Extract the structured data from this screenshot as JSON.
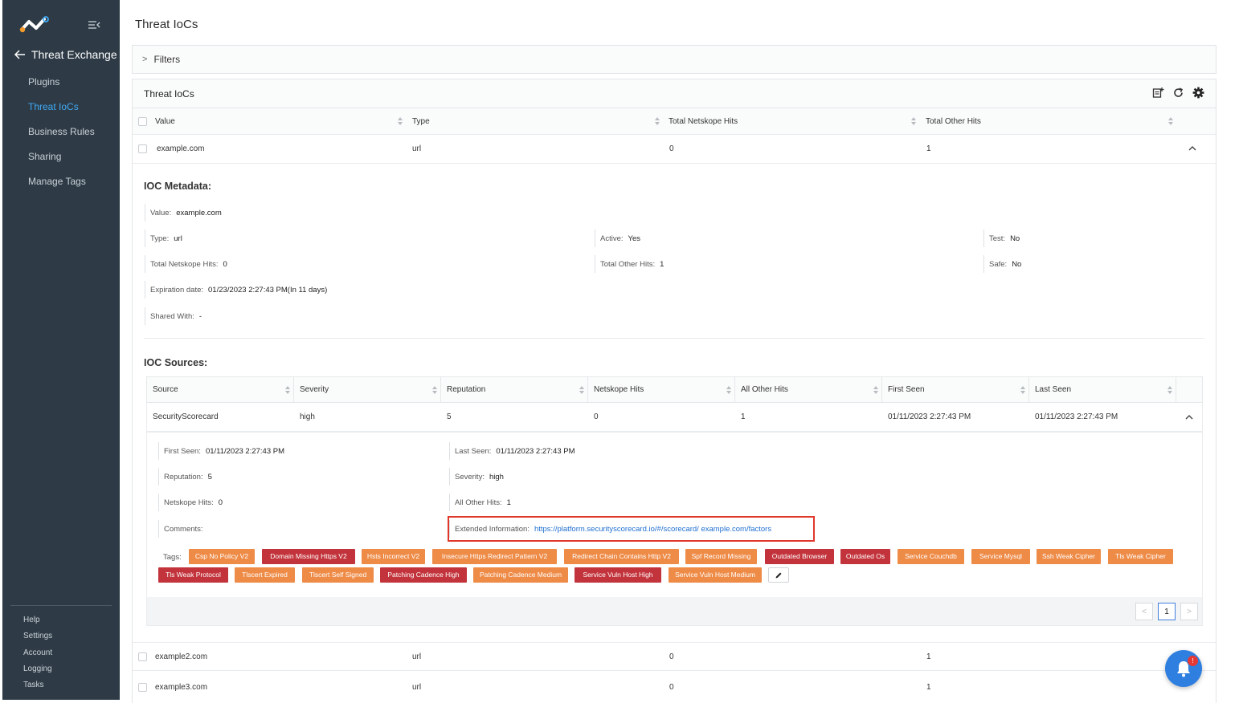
{
  "sidebar": {
    "back_label": "Threat Exchange",
    "items": [
      {
        "label": "Plugins"
      },
      {
        "label": "Threat IoCs"
      },
      {
        "label": "Business Rules"
      },
      {
        "label": "Sharing"
      },
      {
        "label": "Manage Tags"
      }
    ],
    "active_item": "Threat IoCs",
    "bottom_items": [
      {
        "label": "Help"
      },
      {
        "label": "Settings"
      },
      {
        "label": "Account"
      },
      {
        "label": "Logging"
      },
      {
        "label": "Tasks"
      }
    ]
  },
  "page": {
    "title": "Threat IoCs",
    "filters_label": "Filters",
    "card_title": "Threat IoCs"
  },
  "table": {
    "columns": [
      "Value",
      "Type",
      "Total Netskope Hits",
      "Total Other Hits"
    ],
    "rows": [
      {
        "value": "example.com",
        "type": "url",
        "netskope_hits": "0",
        "other_hits": "1"
      },
      {
        "value": "example2.com",
        "type": "url",
        "netskope_hits": "0",
        "other_hits": "1"
      },
      {
        "value": "example3.com",
        "type": "url",
        "netskope_hits": "0",
        "other_hits": "1"
      }
    ]
  },
  "metadata": {
    "title": "IOC Metadata:",
    "value_label": "Value:",
    "value": "example.com",
    "type_label": "Type:",
    "type": "url",
    "active_label": "Active:",
    "active": "Yes",
    "test_label": "Test:",
    "test": "No",
    "netskope_label": "Total Netskope Hits:",
    "netskope": "0",
    "other_label": "Total Other Hits:",
    "other": "1",
    "safe_label": "Safe:",
    "safe": "No",
    "expiration_label": "Expiration date:",
    "expiration": "01/23/2023 2:27:43 PM(In 11 days)",
    "shared_label": "Shared With:",
    "shared": "-"
  },
  "sources": {
    "title": "IOC Sources:",
    "columns": [
      "Source",
      "Severity",
      "Reputation",
      "Netskope Hits",
      "All Other Hits",
      "First Seen",
      "Last Seen"
    ],
    "row": {
      "source": "SecurityScorecard",
      "severity": "high",
      "reputation": "5",
      "netskope_hits": "0",
      "other_hits": "1",
      "first_seen": "01/11/2023 2:27:43 PM",
      "last_seen": "01/11/2023 2:27:43 PM"
    },
    "detail": {
      "first_seen_label": "First Seen:",
      "first_seen": "01/11/2023 2:27:43 PM",
      "last_seen_label": "Last Seen:",
      "last_seen": "01/11/2023 2:27:43 PM",
      "reputation_label": "Reputation:",
      "reputation": "5",
      "severity_label": "Severity:",
      "severity": "high",
      "netskope_label": "Netskope Hits:",
      "netskope": "0",
      "other_label": "All Other Hits:",
      "other": "1",
      "comments_label": "Comments:",
      "ext_label": "Extended Information:",
      "ext_url": "https://platform.securityscorecard.io/#/scorecard/ example.com/factors",
      "tags_label": "Tags:"
    },
    "tags": [
      {
        "label": "Csp No Policy V2",
        "color": "orange"
      },
      {
        "label": "Domain Missing Https V2",
        "color": "red"
      },
      {
        "label": "Hsts Incorrect V2",
        "color": "orange"
      },
      {
        "label": "Insecure Https Redirect Pattern V2",
        "color": "orange"
      },
      {
        "label": "Redirect Chain Contains Http V2",
        "color": "orange"
      },
      {
        "label": "Spf Record Missing",
        "color": "orange"
      },
      {
        "label": "Outdated Browser",
        "color": "red"
      },
      {
        "label": "Outdated Os",
        "color": "red"
      },
      {
        "label": "Service Couchdb",
        "color": "orange"
      },
      {
        "label": "Service Mysql",
        "color": "orange"
      },
      {
        "label": "Ssh Weak Cipher",
        "color": "orange"
      },
      {
        "label": "Tls Weak Cipher",
        "color": "orange"
      },
      {
        "label": "Tls Weak Protocol",
        "color": "red"
      },
      {
        "label": "Tlscert Expired",
        "color": "orange"
      },
      {
        "label": "Tlscert Self Signed",
        "color": "orange"
      },
      {
        "label": "Patching Cadence High",
        "color": "red"
      },
      {
        "label": "Patching Cadence Medium",
        "color": "orange"
      },
      {
        "label": "Service Vuln Host High",
        "color": "red"
      },
      {
        "label": "Service Vuln Host Medium",
        "color": "orange"
      }
    ],
    "pager": {
      "prev": "<",
      "current": "1",
      "next": ">"
    }
  },
  "colors": {
    "sidebar": "#2e3b46",
    "accent": "#3fa9f5",
    "tag_orange": "#ee8b47",
    "tag_red": "#c2333b",
    "highlight": "#e0372b"
  },
  "notification": {
    "badge": "!"
  }
}
